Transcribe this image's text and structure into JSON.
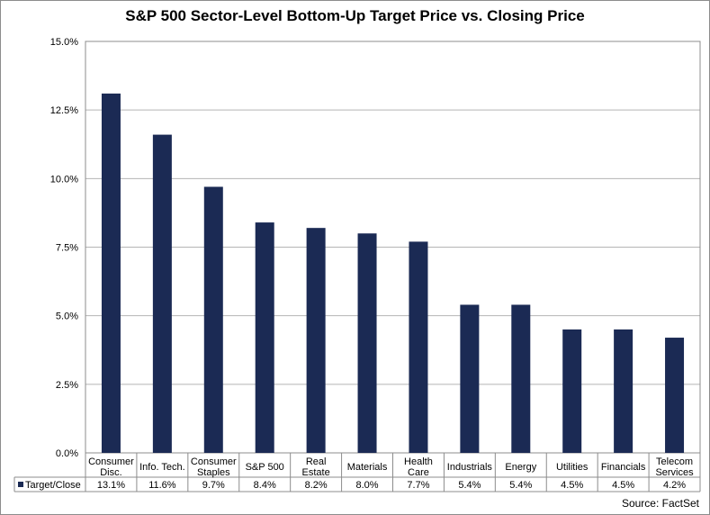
{
  "chart_data": {
    "type": "bar",
    "title": "S&P 500 Sector-Level Bottom-Up Target Price vs. Closing Price",
    "categories": [
      [
        "Consumer",
        "Disc."
      ],
      [
        "Info. Tech."
      ],
      [
        "Consumer",
        "Staples"
      ],
      [
        "S&P 500"
      ],
      [
        "Real",
        "Estate"
      ],
      [
        "Materials"
      ],
      [
        "Health",
        "Care"
      ],
      [
        "Industrials"
      ],
      [
        "Energy"
      ],
      [
        "Utilities"
      ],
      [
        "Financials"
      ],
      [
        "Telecom",
        "Services"
      ]
    ],
    "series": [
      {
        "name": "Target/Close",
        "values": [
          13.1,
          11.6,
          9.7,
          8.4,
          8.2,
          8.0,
          7.7,
          5.4,
          5.4,
          4.5,
          4.5,
          4.2
        ],
        "labels": [
          "13.1%",
          "11.6%",
          "9.7%",
          "8.4%",
          "8.2%",
          "8.0%",
          "7.7%",
          "5.4%",
          "5.4%",
          "4.5%",
          "4.5%",
          "4.2%"
        ]
      }
    ],
    "ylim": [
      0,
      15
    ],
    "yticks": [
      0,
      2.5,
      5,
      7.5,
      10,
      12.5,
      15
    ],
    "ytick_labels": [
      "0.0%",
      "2.5%",
      "5.0%",
      "7.5%",
      "10.0%",
      "12.5%",
      "15.0%"
    ],
    "grid": true,
    "data_table": true,
    "bar_color": "#1b2a54"
  },
  "source": "Source: FactSet"
}
